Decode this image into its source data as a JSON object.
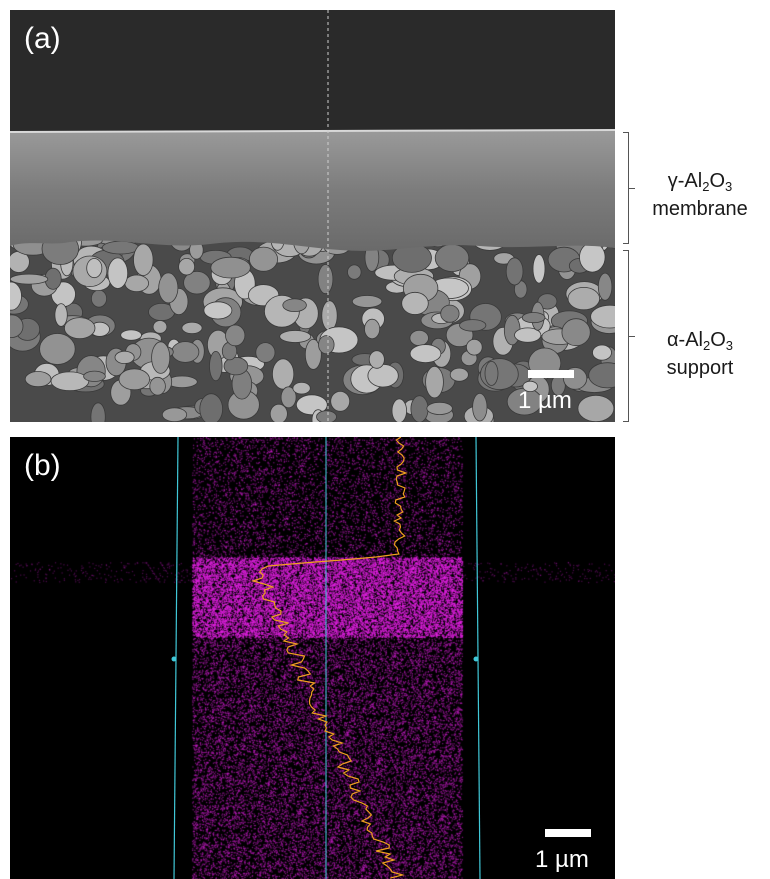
{
  "panels": {
    "a": {
      "label": "(a)",
      "scale_text": "1 µm"
    },
    "b": {
      "label": "(b)",
      "scale_text": "1 µm"
    }
  },
  "layers": {
    "membrane": {
      "greek": "γ",
      "formula_prefix": "-Al",
      "sub1": "2",
      "mid": "O",
      "sub2": "3",
      "name": "membrane"
    },
    "support": {
      "greek": "α",
      "formula_prefix": "-Al",
      "sub1": "2",
      "mid": "O",
      "sub2": "3",
      "name": "support"
    }
  },
  "colors": {
    "sem_background": "#2a2a2a",
    "edx_magenta": "#e020e0",
    "line_profile": "#f0a020",
    "guide_line": "#40c8d8"
  }
}
